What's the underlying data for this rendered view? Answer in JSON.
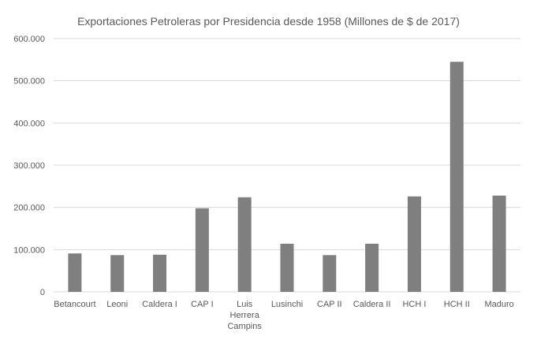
{
  "chart_data": {
    "type": "bar",
    "title": "Exportaciones Petroleras por Presidencia desde 1958 (Millones de $ de 2017)",
    "xlabel": "",
    "ylabel": "",
    "categories": [
      "Betancourt",
      "Leoni",
      "Caldera I",
      "CAP I",
      "Luis Herrera Campins",
      "Lusinchi",
      "CAP II",
      "Caldera II",
      "HCH I",
      "HCH II",
      "Maduro"
    ],
    "category_lines": [
      [
        "Betancourt"
      ],
      [
        "Leoni"
      ],
      [
        "Caldera I"
      ],
      [
        "CAP I"
      ],
      [
        "Luis",
        "Herrera",
        "Campins"
      ],
      [
        "Lusinchi"
      ],
      [
        "CAP II"
      ],
      [
        "Caldera II"
      ],
      [
        "HCH I"
      ],
      [
        "HCH II"
      ],
      [
        "Maduro"
      ]
    ],
    "values": [
      91000,
      87000,
      88000,
      198000,
      224000,
      114000,
      87000,
      114000,
      226000,
      545000,
      228000
    ],
    "ylim": [
      0,
      600000
    ],
    "yticks": [
      0,
      100000,
      200000,
      300000,
      400000,
      500000,
      600000
    ],
    "ytick_labels": [
      "0",
      "100.000",
      "200.000",
      "300.000",
      "400.000",
      "500.000",
      "600.000"
    ],
    "grid": true,
    "bar_color": "#7f7f7f",
    "grid_color": "#d9d9d9"
  }
}
